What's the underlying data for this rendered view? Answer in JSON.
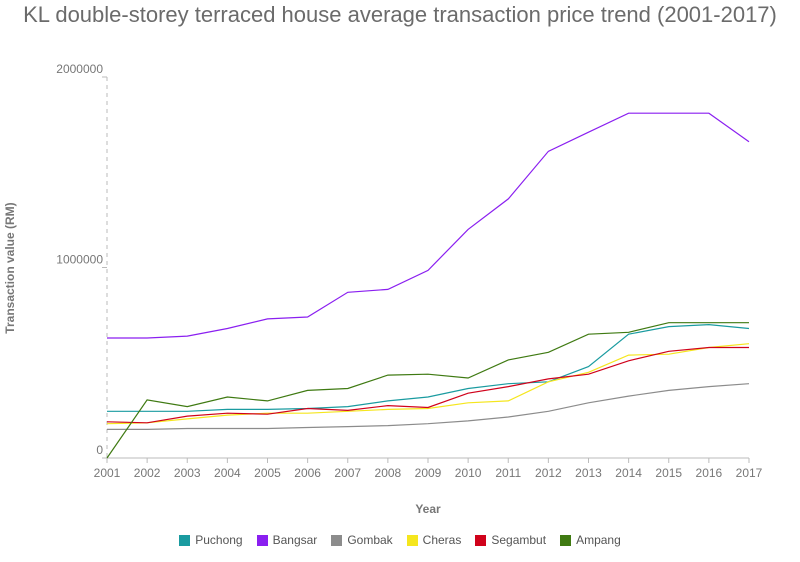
{
  "chart_data": {
    "type": "line",
    "title": "KL double-storey terraced house average transaction price trend (2001-2017)",
    "xlabel": "Year",
    "ylabel": "Transaction value (RM)",
    "x": [
      "2001",
      "2002",
      "2003",
      "2004",
      "2005",
      "2006",
      "2007",
      "2008",
      "2009",
      "2010",
      "2011",
      "2012",
      "2013",
      "2014",
      "2015",
      "2016",
      "2017"
    ],
    "ylim": [
      0,
      2000000
    ],
    "yticks": [
      "0",
      "1000000",
      "2000000"
    ],
    "grid": false,
    "legend_position": "bottom",
    "series": [
      {
        "name": "Puchong",
        "color": "#1a9ba0",
        "values": [
          245000,
          245000,
          245000,
          255000,
          255000,
          260000,
          270000,
          300000,
          320000,
          365000,
          390000,
          400000,
          480000,
          650000,
          690000,
          700000,
          680000
        ]
      },
      {
        "name": "Bangsar",
        "color": "#8a1ff0",
        "values": [
          630000,
          630000,
          640000,
          680000,
          730000,
          740000,
          870000,
          885000,
          985000,
          1200000,
          1360000,
          1610000,
          1710000,
          1810000,
          1810000,
          1810000,
          1660000
        ]
      },
      {
        "name": "Gombak",
        "color": "#8c8c8c",
        "values": [
          150000,
          150000,
          155000,
          155000,
          155000,
          160000,
          165000,
          170000,
          180000,
          195000,
          215000,
          245000,
          290000,
          325000,
          355000,
          375000,
          390000
        ]
      },
      {
        "name": "Cheras",
        "color": "#f5e61e",
        "values": [
          180000,
          185000,
          205000,
          225000,
          235000,
          235000,
          245000,
          255000,
          260000,
          290000,
          300000,
          400000,
          450000,
          540000,
          545000,
          580000,
          600000
        ]
      },
      {
        "name": "Segambut",
        "color": "#d0021b",
        "values": [
          190000,
          185000,
          220000,
          235000,
          230000,
          260000,
          250000,
          275000,
          265000,
          340000,
          375000,
          415000,
          440000,
          510000,
          560000,
          580000,
          580000
        ]
      },
      {
        "name": "Ampang",
        "color": "#3f7a12",
        "values": [
          0,
          305000,
          270000,
          320000,
          300000,
          355000,
          365000,
          435000,
          440000,
          420000,
          515000,
          555000,
          650000,
          660000,
          710000,
          710000,
          710000
        ]
      }
    ]
  }
}
